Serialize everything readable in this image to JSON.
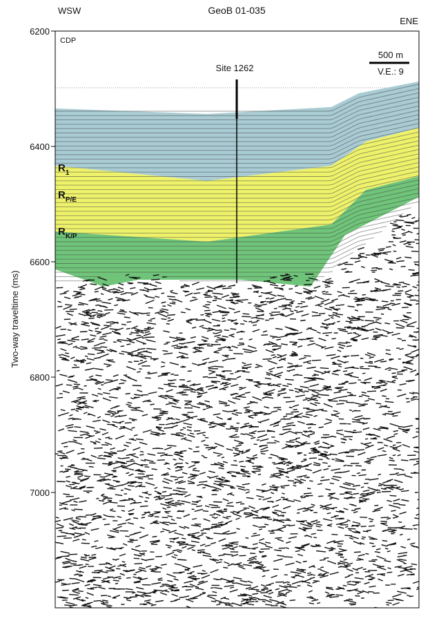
{
  "header": {
    "left": "WSW",
    "title": "GeoB 01-035",
    "right": "ENE"
  },
  "axis": {
    "label": "Two-way traveltime (ms)",
    "ylim": [
      6200,
      7200
    ],
    "yticks": [
      6200,
      6400,
      6600,
      6800,
      7000
    ]
  },
  "profile": {
    "cdp_label": "CDP",
    "site": "Site 1262",
    "scale_bar": "500 m",
    "vertical_exaggeration": "V.E.: 9",
    "reflectors": [
      {
        "label": "R",
        "sub": "1"
      },
      {
        "label": "R",
        "sub": "P/E"
      },
      {
        "label": "R",
        "sub": "K/P"
      }
    ]
  }
}
